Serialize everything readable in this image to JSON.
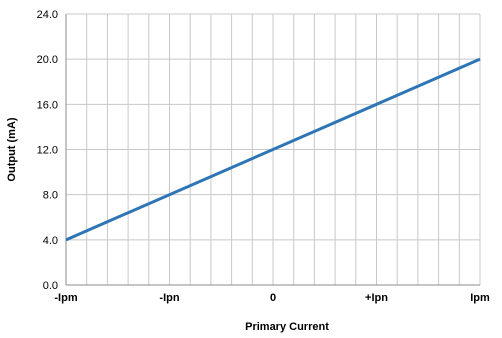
{
  "chart_data": {
    "type": "line",
    "title": "",
    "xlabel": "Primary Current",
    "ylabel": "Output (mA)",
    "x_tick_labels": [
      "-Ipm",
      "-Ipn",
      "0",
      "+Ipn",
      "Ipm"
    ],
    "y_tick_labels": [
      "0.0",
      "4.0",
      "8.0",
      "12.0",
      "16.0",
      "20.0",
      "24.0"
    ],
    "ylim": [
      0,
      24
    ],
    "grid": true,
    "series": [
      {
        "color": "#2e75b6",
        "points": [
          {
            "x": "-Ipm",
            "y": 4.0
          },
          {
            "x": "Ipm",
            "y": 20.0
          }
        ]
      }
    ]
  }
}
